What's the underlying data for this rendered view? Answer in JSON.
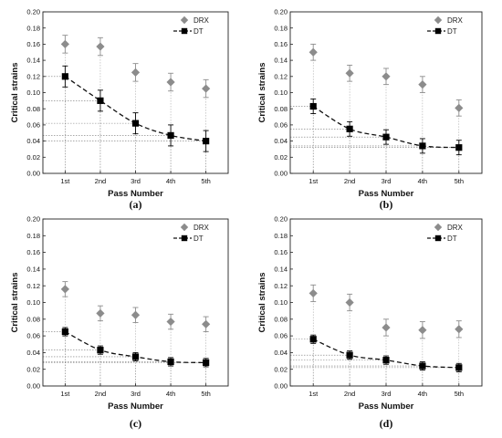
{
  "chart_data": [
    {
      "type": "scatter",
      "panel_label": "(a)",
      "xlabel": "Pass Number",
      "ylabel": "Critical strains",
      "categories": [
        "1st",
        "2nd",
        "3rd",
        "4th",
        "5th"
      ],
      "ylim": [
        0,
        0.2
      ],
      "yticks": [
        "0.00",
        "0.02",
        "0.04",
        "0.06",
        "0.08",
        "0.10",
        "0.12",
        "0.14",
        "0.16",
        "0.18",
        "0.20"
      ],
      "legend_position": "top-right",
      "series": [
        {
          "name": "DRX",
          "marker": "diamond",
          "color": "#8c8c8c",
          "values": [
            0.16,
            0.157,
            0.125,
            0.113,
            0.105
          ],
          "errors": [
            0.011,
            0.011,
            0.011,
            0.011,
            0.011
          ]
        },
        {
          "name": "DT",
          "marker": "square",
          "color": "#000000",
          "line": "dashed",
          "values": [
            0.12,
            0.09,
            0.062,
            0.047,
            0.04
          ],
          "errors": [
            0.013,
            0.013,
            0.013,
            0.013,
            0.013
          ]
        }
      ]
    },
    {
      "type": "scatter",
      "panel_label": "(b)",
      "xlabel": "Pass Number",
      "ylabel": "Critical strains",
      "categories": [
        "1st",
        "2nd",
        "3rd",
        "4th",
        "5th"
      ],
      "ylim": [
        0,
        0.2
      ],
      "yticks": [
        "0.00",
        "0.02",
        "0.04",
        "0.06",
        "0.08",
        "0.10",
        "0.12",
        "0.14",
        "0.16",
        "0.18",
        "0.20"
      ],
      "legend_position": "top-right",
      "series": [
        {
          "name": "DRX",
          "marker": "diamond",
          "color": "#8c8c8c",
          "values": [
            0.15,
            0.124,
            0.12,
            0.11,
            0.081
          ],
          "errors": [
            0.01,
            0.01,
            0.01,
            0.01,
            0.01
          ]
        },
        {
          "name": "DT",
          "marker": "square",
          "color": "#000000",
          "line": "dashed",
          "values": [
            0.083,
            0.055,
            0.045,
            0.034,
            0.032
          ],
          "errors": [
            0.009,
            0.009,
            0.009,
            0.009,
            0.009
          ]
        }
      ]
    },
    {
      "type": "scatter",
      "panel_label": "(c)",
      "xlabel": "Pass Number",
      "ylabel": "Critical strains",
      "categories": [
        "1st",
        "2nd",
        "3rd",
        "4th",
        "5th"
      ],
      "ylim": [
        0,
        0.2
      ],
      "yticks": [
        "0.00",
        "0.02",
        "0.04",
        "0.06",
        "0.08",
        "0.10",
        "0.12",
        "0.14",
        "0.16",
        "0.18",
        "0.20"
      ],
      "legend_position": "top-right",
      "series": [
        {
          "name": "DRX",
          "marker": "diamond",
          "color": "#8c8c8c",
          "values": [
            0.116,
            0.087,
            0.085,
            0.077,
            0.074
          ],
          "errors": [
            0.009,
            0.009,
            0.009,
            0.009,
            0.009
          ]
        },
        {
          "name": "DT",
          "marker": "square",
          "color": "#000000",
          "line": "dashed",
          "values": [
            0.065,
            0.043,
            0.035,
            0.029,
            0.028
          ],
          "errors": [
            0.005,
            0.005,
            0.005,
            0.005,
            0.005
          ]
        }
      ]
    },
    {
      "type": "scatter",
      "panel_label": "(d)",
      "xlabel": "Pass Number",
      "ylabel": "Critical strains",
      "categories": [
        "1st",
        "2nd",
        "3rd",
        "4th",
        "5th"
      ],
      "ylim": [
        0,
        0.2
      ],
      "yticks": [
        "0.00",
        "0.02",
        "0.04",
        "0.06",
        "0.08",
        "0.10",
        "0.12",
        "0.14",
        "0.16",
        "0.18",
        "0.20"
      ],
      "legend_position": "top-right",
      "series": [
        {
          "name": "DRX",
          "marker": "diamond",
          "color": "#8c8c8c",
          "values": [
            0.111,
            0.1,
            0.07,
            0.067,
            0.068
          ],
          "errors": [
            0.01,
            0.01,
            0.01,
            0.01,
            0.01
          ]
        },
        {
          "name": "DT",
          "marker": "square",
          "color": "#000000",
          "line": "dashed",
          "values": [
            0.056,
            0.037,
            0.031,
            0.024,
            0.022
          ],
          "errors": [
            0.005,
            0.005,
            0.005,
            0.005,
            0.005
          ]
        }
      ]
    }
  ]
}
